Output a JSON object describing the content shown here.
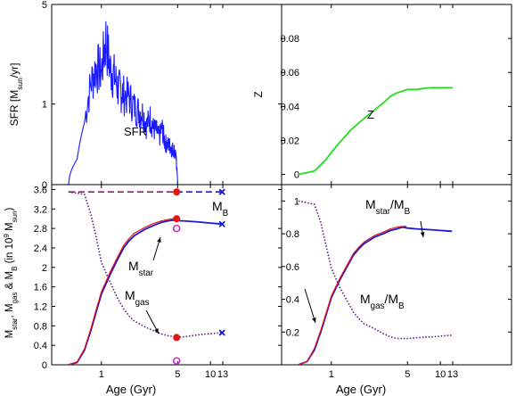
{
  "colors": {
    "sfr": "#1a1aff",
    "z": "#22dd22",
    "blue": "#1a1ad0",
    "red": "#ee1111",
    "purple": "#551a8b",
    "magenta": "#dd22dd",
    "axis": "#000000"
  },
  "chart_data": [
    {
      "panel": "top-left",
      "type": "line",
      "ylabel": "SFR [M_sun/yr]",
      "ylabel_parts": [
        "SFR [M",
        "sun",
        "/yr]"
      ],
      "annotation": "SFR",
      "y_scale": "sqrt",
      "ylim": [
        0,
        5
      ],
      "yticks": [
        {
          "v": 0,
          "label": "0"
        },
        {
          "v": 1,
          "label": "1"
        },
        {
          "v": 5,
          "label": "5"
        }
      ],
      "series": [
        {
          "x": [
            0.5,
            0.6,
            0.7,
            0.8,
            0.9,
            1.0,
            1.1,
            1.2,
            1.3,
            1.4,
            1.5,
            1.6,
            1.8,
            2.0,
            2.2,
            2.4,
            2.6,
            2.8,
            3.0,
            3.2,
            3.4,
            3.6,
            3.8,
            4.0,
            4.2,
            4.4,
            4.6,
            4.8,
            4.9,
            5.0,
            6.0,
            8.0,
            10.0,
            13.0
          ],
          "y": [
            0.0,
            0.1,
            0.6,
            1.6,
            2.2,
            2.0,
            3.3,
            2.1,
            1.9,
            1.5,
            1.4,
            1.3,
            1.2,
            0.95,
            0.85,
            0.8,
            0.55,
            0.7,
            0.5,
            0.45,
            0.35,
            0.5,
            0.3,
            0.25,
            0.25,
            0.2,
            0.2,
            0.15,
            0.05,
            0.0,
            0.0,
            0.0,
            0.0,
            0.0
          ]
        }
      ]
    },
    {
      "panel": "top-right",
      "type": "line",
      "ylabel": "Z",
      "annotation": "Z",
      "ylim": [
        -0.006,
        0.1
      ],
      "yticks": [
        {
          "v": 0,
          "label": "0"
        },
        {
          "v": 0.02,
          "label": "0.02"
        },
        {
          "v": 0.04,
          "label": "0.04"
        },
        {
          "v": 0.06,
          "label": "0.06"
        },
        {
          "v": 0.08,
          "label": "0.08"
        }
      ],
      "series": [
        {
          "x": [
            0.5,
            0.7,
            0.9,
            1.0,
            1.2,
            1.5,
            2.0,
            2.5,
            3.0,
            3.5,
            4.0,
            4.5,
            5.0,
            6.0,
            8.0,
            10.0,
            13.0
          ],
          "y": [
            0.0,
            0.002,
            0.009,
            0.013,
            0.019,
            0.026,
            0.033,
            0.038,
            0.042,
            0.046,
            0.048,
            0.049,
            0.05,
            0.05,
            0.051,
            0.051,
            0.051
          ]
        }
      ]
    },
    {
      "panel": "bottom-left",
      "type": "line",
      "xlabel": "Age (Gyr)",
      "ylabel": "M_star, M_gas & M_B (in 10^9 M_sun)",
      "ylim": [
        0,
        3.7
      ],
      "yticks": [
        {
          "v": 0,
          "label": "0"
        },
        {
          "v": 0.4,
          "label": "0.4"
        },
        {
          "v": 0.8,
          "label": "0.8"
        },
        {
          "v": 1.2,
          "label": "1.2"
        },
        {
          "v": 1.6,
          "label": "1.6"
        },
        {
          "v": 2.0,
          "label": "2"
        },
        {
          "v": 2.4,
          "label": "2.4"
        },
        {
          "v": 2.8,
          "label": "2.8"
        },
        {
          "v": 3.2,
          "label": "3.2"
        },
        {
          "v": 3.6,
          "label": "3.6"
        }
      ],
      "xticks": [
        {
          "v": 1,
          "label": "1"
        },
        {
          "v": 5,
          "label": "5"
        },
        {
          "v": 10,
          "label": "10"
        },
        {
          "v": 13,
          "label": "13"
        }
      ],
      "labels": {
        "mb": {
          "main": "M",
          "sub": "B"
        },
        "mstar": {
          "main": "M",
          "sub": "star"
        },
        "mgas": {
          "main": "M",
          "sub": "gas"
        }
      },
      "series": [
        {
          "id": "mstar_blue",
          "x": [
            0.5,
            0.6,
            0.7,
            0.8,
            0.9,
            1.0,
            1.2,
            1.4,
            1.6,
            1.8,
            2.0,
            2.5,
            3.0,
            3.5,
            4.0,
            4.5,
            5.0,
            6.0,
            8.0,
            10.0,
            12.8
          ],
          "y": [
            0.0,
            0.05,
            0.3,
            0.7,
            1.1,
            1.45,
            1.85,
            2.15,
            2.4,
            2.55,
            2.65,
            2.78,
            2.86,
            2.92,
            2.95,
            2.97,
            2.96,
            2.95,
            2.93,
            2.91,
            2.89
          ]
        },
        {
          "id": "mstar_red",
          "x": [
            0.5,
            0.6,
            0.7,
            0.8,
            0.9,
            1.0,
            1.2,
            1.4,
            1.6,
            1.8,
            2.0,
            2.5,
            3.0,
            3.5,
            4.0,
            4.5,
            4.9
          ],
          "y": [
            0.0,
            0.06,
            0.33,
            0.74,
            1.15,
            1.5,
            1.9,
            2.2,
            2.45,
            2.6,
            2.7,
            2.82,
            2.9,
            2.95,
            2.98,
            3.0,
            3.0
          ]
        },
        {
          "id": "mgas_dotted",
          "x": [
            0.5,
            0.7,
            0.8,
            0.9,
            1.0,
            1.2,
            1.4,
            1.6,
            1.8,
            2.0,
            2.5,
            3.0,
            3.5,
            4.0,
            4.5,
            5.0,
            6.0,
            8.0,
            10.0,
            12.8
          ],
          "y": [
            3.55,
            3.5,
            3.1,
            2.6,
            2.1,
            1.7,
            1.38,
            1.15,
            1.0,
            0.9,
            0.78,
            0.7,
            0.64,
            0.6,
            0.58,
            0.56,
            0.58,
            0.62,
            0.64,
            0.66
          ]
        },
        {
          "id": "mb_dashed_blue",
          "x": [
            0.5,
            12.8
          ],
          "y": [
            3.55,
            3.55
          ]
        },
        {
          "id": "mb_dashed_red",
          "x": [
            0.5,
            4.9
          ],
          "y": [
            3.55,
            3.55
          ]
        }
      ],
      "markers": [
        {
          "kind": "dot",
          "x": 4.9,
          "y": 3.55
        },
        {
          "kind": "dot",
          "x": 4.9,
          "y": 3.0
        },
        {
          "kind": "dot",
          "x": 4.9,
          "y": 0.56
        },
        {
          "kind": "ring",
          "x": 4.9,
          "y": 2.8
        },
        {
          "kind": "ring",
          "x": 4.9,
          "y": 0.08
        },
        {
          "kind": "cross",
          "x": 12.8,
          "y": 3.55
        },
        {
          "kind": "cross",
          "x": 12.8,
          "y": 2.89
        },
        {
          "kind": "cross",
          "x": 12.8,
          "y": 0.66
        }
      ]
    },
    {
      "panel": "bottom-right",
      "type": "line",
      "xlabel": "Age (Gyr)",
      "ylim": [
        0,
        1.1
      ],
      "yticks": [
        {
          "v": 0.2,
          "label": "0.2"
        },
        {
          "v": 0.4,
          "label": "0.4"
        },
        {
          "v": 0.6,
          "label": "0.6"
        },
        {
          "v": 0.8,
          "label": "0.8"
        },
        {
          "v": 1.0,
          "label": "1"
        }
      ],
      "xticks": [
        {
          "v": 1,
          "label": "1"
        },
        {
          "v": 5,
          "label": "5"
        },
        {
          "v": 10,
          "label": "10"
        },
        {
          "v": 13,
          "label": "13"
        }
      ],
      "labels": {
        "ratio_star": {
          "main": "M",
          "sub": "star",
          "tail": "/M",
          "sub2": "B"
        },
        "ratio_gas": {
          "main": "M",
          "sub": "gas",
          "tail": "/M",
          "sub2": "B"
        }
      },
      "series": [
        {
          "id": "ratio_star_blue",
          "x": [
            0.5,
            0.6,
            0.7,
            0.8,
            0.9,
            1.0,
            1.2,
            1.4,
            1.6,
            1.8,
            2.0,
            2.5,
            3.0,
            3.5,
            4.0,
            4.5,
            5.0,
            6.0,
            8.0,
            10.0,
            12.8
          ],
          "y": [
            0.0,
            0.02,
            0.09,
            0.2,
            0.31,
            0.41,
            0.52,
            0.6,
            0.67,
            0.71,
            0.74,
            0.78,
            0.8,
            0.82,
            0.83,
            0.84,
            0.835,
            0.83,
            0.825,
            0.82,
            0.815
          ]
        },
        {
          "id": "ratio_star_red",
          "x": [
            0.5,
            0.6,
            0.7,
            0.8,
            0.9,
            1.0,
            1.2,
            1.4,
            1.6,
            1.8,
            2.0,
            2.5,
            3.0,
            3.5,
            4.0,
            4.5,
            4.9
          ],
          "y": [
            0.0,
            0.02,
            0.1,
            0.21,
            0.32,
            0.42,
            0.53,
            0.61,
            0.68,
            0.72,
            0.75,
            0.79,
            0.81,
            0.83,
            0.84,
            0.845,
            0.845
          ]
        },
        {
          "id": "ratio_gas_dotted",
          "x": [
            0.5,
            0.7,
            0.8,
            0.9,
            1.0,
            1.2,
            1.4,
            1.6,
            1.8,
            2.0,
            2.5,
            3.0,
            3.5,
            4.0,
            4.5,
            5.0,
            6.0,
            8.0,
            10.0,
            12.8
          ],
          "y": [
            1.0,
            0.98,
            0.87,
            0.72,
            0.59,
            0.47,
            0.39,
            0.32,
            0.28,
            0.25,
            0.22,
            0.19,
            0.17,
            0.16,
            0.16,
            0.16,
            0.165,
            0.17,
            0.175,
            0.18
          ]
        }
      ]
    }
  ]
}
